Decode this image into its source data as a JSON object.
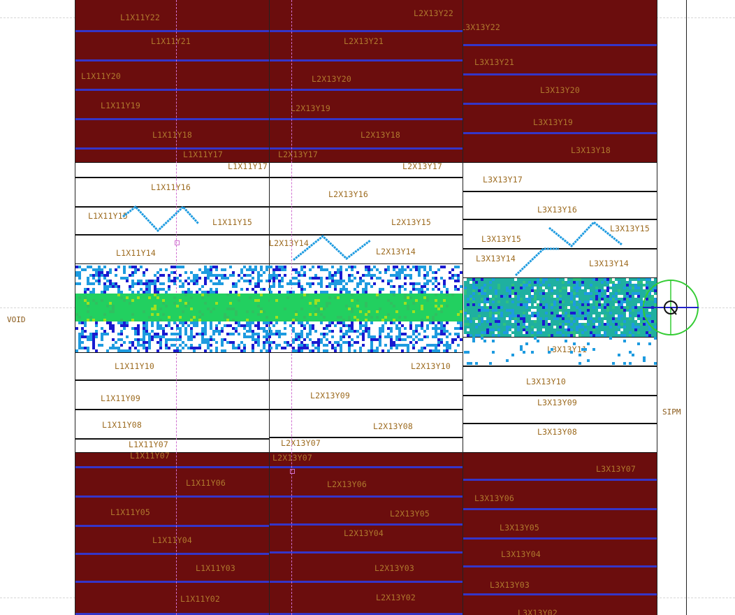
{
  "side_labels": {
    "void": "VOID",
    "sipm": "SIPM"
  },
  "columns": [
    {
      "id": "L1X11",
      "strips": [
        {
          "label": "L1X11Y22",
          "style": "red"
        },
        {
          "label": "L1X11Y21",
          "style": "red"
        },
        {
          "label": "L1X11Y20",
          "style": "red"
        },
        {
          "label": "L1X11Y19",
          "style": "red"
        },
        {
          "label": "L1X11Y18",
          "style": "red"
        },
        {
          "label": "L1X11Y17",
          "style": "red"
        },
        {
          "label": "L1X11Y17",
          "style": "white"
        },
        {
          "label": "L1X11Y16",
          "style": "white"
        },
        {
          "label": "L1X11Y15",
          "style": "white"
        },
        {
          "label": "L1X11Y15",
          "style": "white"
        },
        {
          "label": "L1X11Y14",
          "style": "white"
        },
        {
          "label": "L1X11Y10",
          "style": "white"
        },
        {
          "label": "L1X11Y09",
          "style": "white"
        },
        {
          "label": "L1X11Y08",
          "style": "white"
        },
        {
          "label": "L1X11Y07",
          "style": "white"
        },
        {
          "label": "L1X11Y07",
          "style": "red"
        },
        {
          "label": "L1X11Y06",
          "style": "red"
        },
        {
          "label": "L1X11Y05",
          "style": "red"
        },
        {
          "label": "L1X11Y04",
          "style": "red"
        },
        {
          "label": "L1X11Y03",
          "style": "red"
        },
        {
          "label": "L1X11Y02",
          "style": "red"
        }
      ]
    },
    {
      "id": "L2X13",
      "strips": [
        {
          "label": "L2X13Y22",
          "style": "red"
        },
        {
          "label": "L2X13Y21",
          "style": "red"
        },
        {
          "label": "L2X13Y20",
          "style": "red"
        },
        {
          "label": "L2X13Y19",
          "style": "red"
        },
        {
          "label": "L2X13Y18",
          "style": "red"
        },
        {
          "label": "L2X13Y17",
          "style": "red"
        },
        {
          "label": "L2X13Y17",
          "style": "white"
        },
        {
          "label": "L2X13Y16",
          "style": "white"
        },
        {
          "label": "L2X13Y15",
          "style": "white"
        },
        {
          "label": "L2X13Y14",
          "style": "white"
        },
        {
          "label": "L2X13Y14",
          "style": "white"
        },
        {
          "label": "L2X13Y10",
          "style": "white"
        },
        {
          "label": "L2X13Y09",
          "style": "white"
        },
        {
          "label": "L2X13Y08",
          "style": "white"
        },
        {
          "label": "L2X13Y07",
          "style": "white"
        },
        {
          "label": "L2X13Y07",
          "style": "red"
        },
        {
          "label": "L2X13Y06",
          "style": "red"
        },
        {
          "label": "L2X13Y05",
          "style": "red"
        },
        {
          "label": "L2X13Y04",
          "style": "red"
        },
        {
          "label": "L2X13Y03",
          "style": "red"
        },
        {
          "label": "L2X13Y02",
          "style": "red"
        }
      ]
    },
    {
      "id": "L3X13",
      "strips": [
        {
          "label": "L3X13Y22",
          "style": "red"
        },
        {
          "label": "L3X13Y21",
          "style": "red"
        },
        {
          "label": "L3X13Y20",
          "style": "red"
        },
        {
          "label": "L3X13Y19",
          "style": "red"
        },
        {
          "label": "L3X13Y18",
          "style": "red"
        },
        {
          "label": "L3X13Y17",
          "style": "white"
        },
        {
          "label": "L3X13Y16",
          "style": "white"
        },
        {
          "label": "L3X13Y15",
          "style": "white"
        },
        {
          "label": "L3X13Y15",
          "style": "white"
        },
        {
          "label": "L3X13Y14",
          "style": "white"
        },
        {
          "label": "L3X13Y14",
          "style": "white"
        },
        {
          "label": "L3X13Y11",
          "style": "white"
        },
        {
          "label": "L3X13Y10",
          "style": "white"
        },
        {
          "label": "L3X13Y09",
          "style": "white"
        },
        {
          "label": "L3X13Y08",
          "style": "white"
        },
        {
          "label": "L3X13Y07",
          "style": "red"
        },
        {
          "label": "L3X13Y06",
          "style": "red"
        },
        {
          "label": "L3X13Y05",
          "style": "red"
        },
        {
          "label": "L3X13Y04",
          "style": "red"
        },
        {
          "label": "L3X13Y03",
          "style": "red"
        },
        {
          "label": "L3X13Y02",
          "style": "red"
        }
      ]
    }
  ],
  "colors": {
    "inactive_strip": "#6b0d0d",
    "strip_edge": "#3535c8",
    "hit_low": "#1a1ad0",
    "hit_mid": "#1e9be0",
    "hit_high": "#22d060",
    "hit_peak": "#a0e020",
    "crosshair": "#33cc33",
    "pointer": "#2222cc"
  },
  "icons": {
    "crosshair": "crosshair-target-icon"
  }
}
